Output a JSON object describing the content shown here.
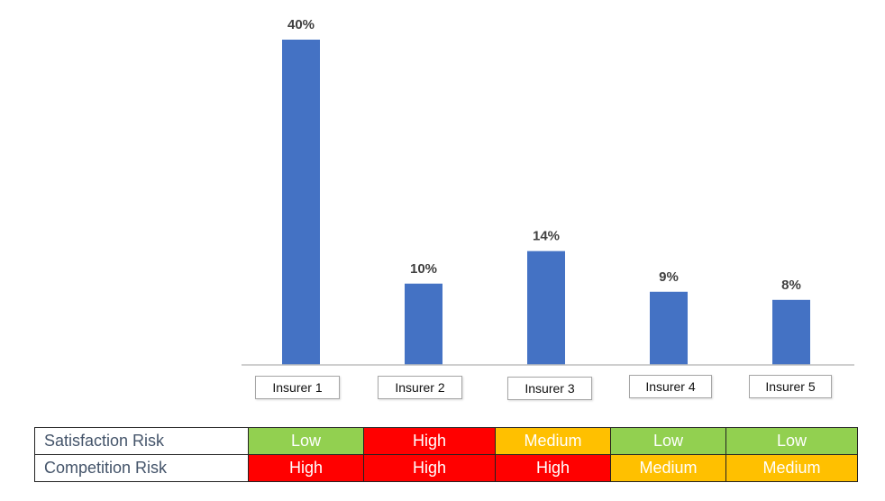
{
  "chart_data": {
    "type": "bar",
    "categories": [
      "Insurer 1",
      "Insurer 2",
      "Insurer 3",
      "Insurer 4",
      "Insurer 5"
    ],
    "values": [
      40,
      10,
      14,
      9,
      8
    ],
    "data_labels": [
      "40%",
      "10%",
      "14%",
      "9%",
      "8%"
    ],
    "value_unit": "%",
    "bar_color": "#4472c4",
    "ylim": [
      0,
      40
    ],
    "grid": false,
    "title": "",
    "xlabel": "",
    "ylabel": ""
  },
  "risk_table": {
    "columns": [
      "Insurer 1",
      "Insurer 2",
      "Insurer 3",
      "Insurer 4",
      "Insurer 5"
    ],
    "rows": [
      {
        "label": "Satisfaction Risk",
        "values": [
          "Low",
          "High",
          "Medium",
          "Low",
          "Low"
        ]
      },
      {
        "label": "Competition Risk",
        "values": [
          "High",
          "High",
          "High",
          "Medium",
          "Medium"
        ]
      }
    ],
    "colors": {
      "Low": "#92d050",
      "Medium": "#ffc000",
      "High": "#ff0000"
    }
  }
}
